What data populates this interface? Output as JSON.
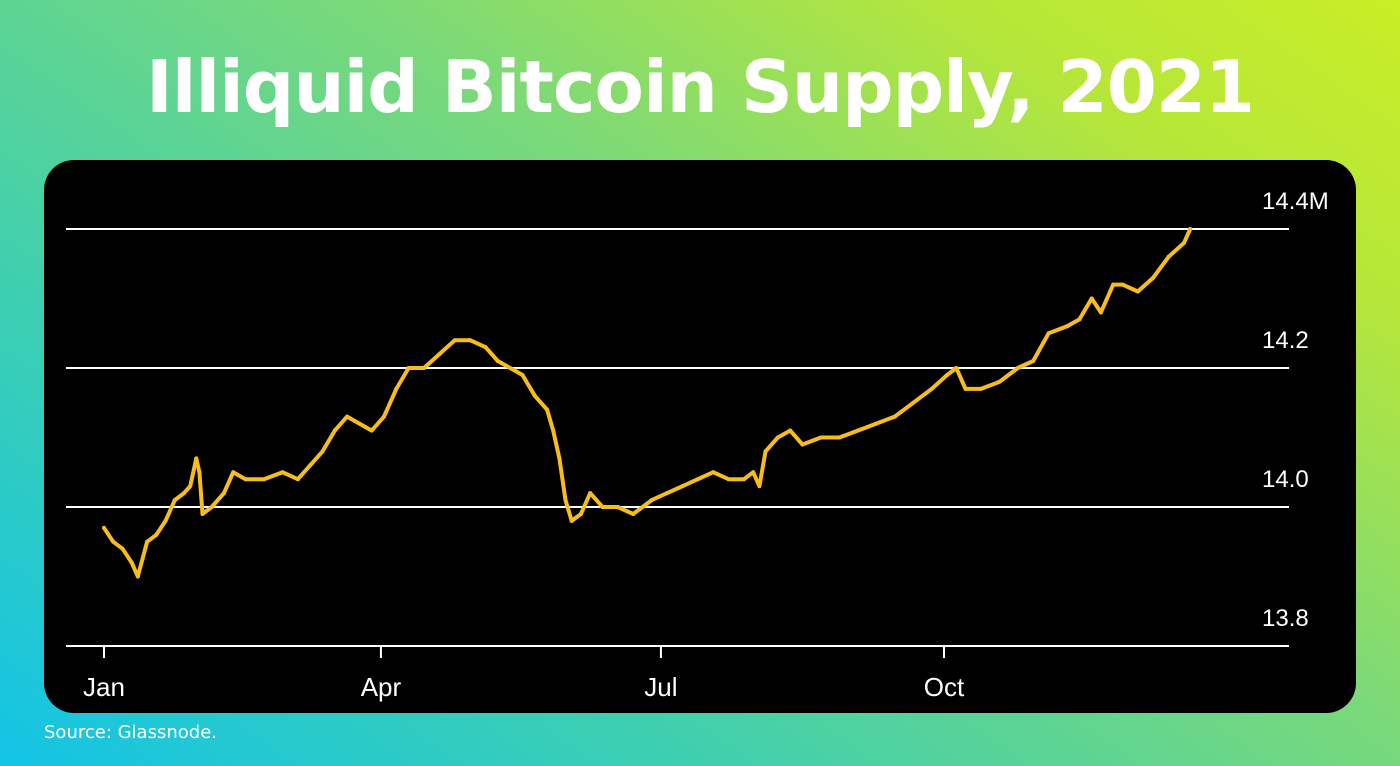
{
  "title": "Illiquid Bitcoin Supply, 2021",
  "source": "Source: Glassnode.",
  "colors": {
    "line": "#f7bd1a",
    "grid": "#ffffff",
    "card": "#000000",
    "text": "#ffffff"
  },
  "chart_data": {
    "type": "line",
    "title": "Illiquid Bitcoin Supply, 2021",
    "xlabel": "",
    "ylabel": "",
    "y_unit_suffix": "M",
    "y_ticks": [
      13.8,
      14.0,
      14.2,
      14.4
    ],
    "y_tick_labels": [
      "13.8",
      "14.0",
      "14.2",
      "14.4M"
    ],
    "ylim": [
      13.8,
      14.4
    ],
    "x_ticks": [
      {
        "label": "Jan",
        "date": "2021-01-01"
      },
      {
        "label": "Apr",
        "date": "2021-04-01"
      },
      {
        "label": "Jul",
        "date": "2021-07-01"
      },
      {
        "label": "Oct",
        "date": "2021-10-01"
      }
    ],
    "x_range": [
      "2021-01-01",
      "2021-12-31"
    ],
    "grid": "horizontal",
    "series": [
      {
        "values": [
          [
            "2021-01-01",
            13.97
          ],
          [
            "2021-01-04",
            13.95
          ],
          [
            "2021-01-07",
            13.94
          ],
          [
            "2021-01-10",
            13.92
          ],
          [
            "2021-01-12",
            13.9
          ],
          [
            "2021-01-15",
            13.95
          ],
          [
            "2021-01-18",
            13.96
          ],
          [
            "2021-01-21",
            13.98
          ],
          [
            "2021-01-24",
            14.01
          ],
          [
            "2021-01-27",
            14.02
          ],
          [
            "2021-01-29",
            14.03
          ],
          [
            "2021-01-31",
            14.07
          ],
          [
            "2021-02-01",
            14.05
          ],
          [
            "2021-02-02",
            13.99
          ],
          [
            "2021-02-05",
            14.0
          ],
          [
            "2021-02-09",
            14.02
          ],
          [
            "2021-02-12",
            14.05
          ],
          [
            "2021-02-16",
            14.04
          ],
          [
            "2021-02-22",
            14.04
          ],
          [
            "2021-02-28",
            14.05
          ],
          [
            "2021-03-05",
            14.04
          ],
          [
            "2021-03-09",
            14.06
          ],
          [
            "2021-03-13",
            14.08
          ],
          [
            "2021-03-17",
            14.11
          ],
          [
            "2021-03-21",
            14.13
          ],
          [
            "2021-03-25",
            14.12
          ],
          [
            "2021-03-29",
            14.11
          ],
          [
            "2021-04-02",
            14.13
          ],
          [
            "2021-04-06",
            14.17
          ],
          [
            "2021-04-10",
            14.2
          ],
          [
            "2021-04-15",
            14.2
          ],
          [
            "2021-04-20",
            14.22
          ],
          [
            "2021-04-25",
            14.24
          ],
          [
            "2021-04-30",
            14.24
          ],
          [
            "2021-05-05",
            14.23
          ],
          [
            "2021-05-09",
            14.21
          ],
          [
            "2021-05-13",
            14.2
          ],
          [
            "2021-05-17",
            14.19
          ],
          [
            "2021-05-21",
            14.16
          ],
          [
            "2021-05-25",
            14.14
          ],
          [
            "2021-05-27",
            14.11
          ],
          [
            "2021-05-29",
            14.07
          ],
          [
            "2021-05-31",
            14.01
          ],
          [
            "2021-06-02",
            13.98
          ],
          [
            "2021-06-05",
            13.99
          ],
          [
            "2021-06-08",
            14.02
          ],
          [
            "2021-06-12",
            14.0
          ],
          [
            "2021-06-17",
            14.0
          ],
          [
            "2021-06-22",
            13.99
          ],
          [
            "2021-06-28",
            14.01
          ],
          [
            "2021-07-03",
            14.02
          ],
          [
            "2021-07-08",
            14.03
          ],
          [
            "2021-07-13",
            14.04
          ],
          [
            "2021-07-18",
            14.05
          ],
          [
            "2021-07-23",
            14.04
          ],
          [
            "2021-07-28",
            14.04
          ],
          [
            "2021-07-31",
            14.05
          ],
          [
            "2021-08-02",
            14.03
          ],
          [
            "2021-08-04",
            14.08
          ],
          [
            "2021-08-08",
            14.1
          ],
          [
            "2021-08-12",
            14.11
          ],
          [
            "2021-08-16",
            14.09
          ],
          [
            "2021-08-22",
            14.1
          ],
          [
            "2021-08-28",
            14.1
          ],
          [
            "2021-09-03",
            14.11
          ],
          [
            "2021-09-09",
            14.12
          ],
          [
            "2021-09-15",
            14.13
          ],
          [
            "2021-09-21",
            14.15
          ],
          [
            "2021-09-27",
            14.17
          ],
          [
            "2021-10-02",
            14.19
          ],
          [
            "2021-10-05",
            14.2
          ],
          [
            "2021-10-08",
            14.17
          ],
          [
            "2021-10-13",
            14.17
          ],
          [
            "2021-10-19",
            14.18
          ],
          [
            "2021-10-25",
            14.2
          ],
          [
            "2021-10-30",
            14.21
          ],
          [
            "2021-11-04",
            14.25
          ],
          [
            "2021-11-10",
            14.26
          ],
          [
            "2021-11-14",
            14.27
          ],
          [
            "2021-11-18",
            14.3
          ],
          [
            "2021-11-21",
            14.28
          ],
          [
            "2021-11-25",
            14.32
          ],
          [
            "2021-11-28",
            14.32
          ],
          [
            "2021-12-03",
            14.31
          ],
          [
            "2021-12-08",
            14.33
          ],
          [
            "2021-12-13",
            14.36
          ],
          [
            "2021-12-18",
            14.38
          ],
          [
            "2021-12-20",
            14.4
          ]
        ]
      }
    ]
  }
}
